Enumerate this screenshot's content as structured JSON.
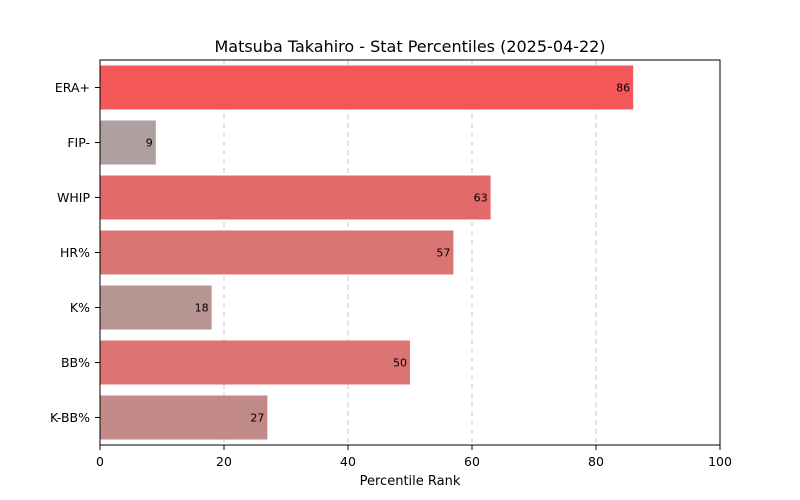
{
  "chart_data": {
    "type": "bar",
    "orientation": "horizontal",
    "title": "Matsuba Takahiro - Stat Percentiles (2025-04-22)",
    "xlabel": "Percentile Rank",
    "ylabel": "",
    "xlim": [
      0,
      100
    ],
    "xticks": [
      "0",
      "20",
      "40",
      "60",
      "80",
      "100"
    ],
    "grid": "x-dashed",
    "categories": [
      "ERA+",
      "FIP-",
      "WHIP",
      "HR%",
      "K%",
      "BB%",
      "K-BB%"
    ],
    "values": [
      86,
      9,
      63,
      57,
      18,
      50,
      27
    ],
    "colors": [
      "#f45757",
      "#af9f9f",
      "#e4696a",
      "#da7472",
      "#b79592",
      "#db7473",
      "#c18a89"
    ]
  }
}
